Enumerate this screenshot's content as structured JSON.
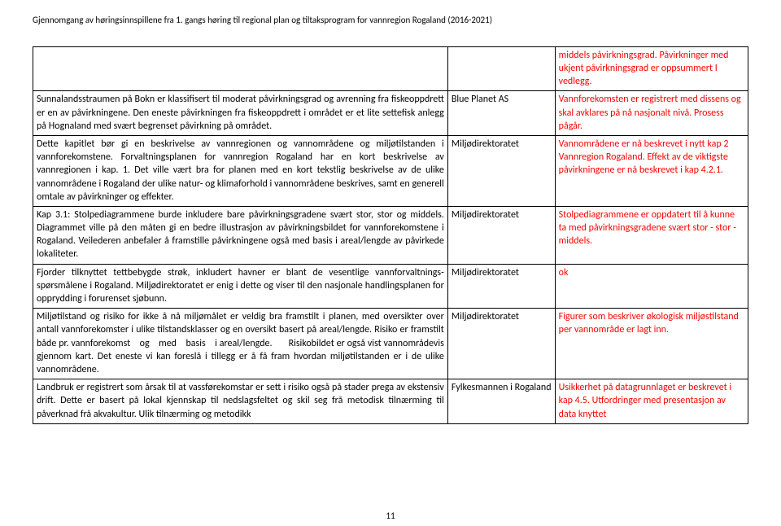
{
  "header": "Gjennomgang av høringsinnspillene fra 1. gangs høring til regional plan og tiltaksprogram for vannregion Rogaland (2016-2021)",
  "rows": [
    {
      "c1": "",
      "c2": "",
      "c3_class": "red",
      "c3": "middels påvirkningsgrad. Påvirkninger med ukjent påvirkningsgrad er oppsummert I vedlegg."
    },
    {
      "c1": "Sunnalandsstraumen på Bokn er klassifisert til moderat påvirkningsgrad og avrenning fra fiskeoppdrett er en av påvirkningene. Den eneste påvirkningen fra fiskeoppdrett i området er et lite settefisk anlegg på Hognaland med svært begrenset påvirkning på området.",
      "c2": "Blue Planet AS",
      "c3_class": "red",
      "c3": "Vannforekomsten er registrert med dissens og skal avklares på nå nasjonalt nivå. Prosess pågår."
    },
    {
      "c1": "Dette kapitlet bør gi en beskrivelse av vannregionen og vannområdene og miljøtilstanden i vannforekomstene. Forvaltningsplanen for vannregion Rogaland har en kort beskrivelse av vannregionen i kap. 1. Det ville vært bra for planen med en kort tekstlig beskrivelse av de ulike vannområdene i Rogaland der ulike natur- og klimaforhold i vannområdene beskrives, samt en generell omtale av påvirkninger og effekter.",
      "c2": "Miljødirektoratet",
      "c3_class": "red",
      "c3": "Vannområdene er nå beskrevet i nytt kap 2 Vannregion Rogaland. Effekt av de viktigste påvirkningene er nå beskrevet i kap 4.2.1."
    },
    {
      "c1": "Kap 3.1: Stolpediagrammene burde inkludere bare påvirkningsgradene svært stor, stor og middels. Diagrammet ville på den måten gi en bedre illustrasjon av påvirkningsbildet for vannforekomstene i Rogaland. Veilederen anbefaler å framstille påvirkningene også med basis i areal/lengde av påvirkede lokaliteter.",
      "c2": "Miljødirektoratet",
      "c3_class": "red",
      "c3": "Stolpediagrammene er oppdatert til å kunne ta med påvirkningsgradene svært stor - stor - middels."
    },
    {
      "c1": "Fjorder tilknyttet tettbebygde strøk, inkludert havner er blant de vesentlige vannforvaltnings- spørsmålene i Rogaland. Miljødirektoratet er enig i dette og viser til den nasjonale handlingsplanen for opprydding i forurenset sjøbunn.",
      "c2": "Miljødirektoratet",
      "c3_class": "red",
      "c3": "ok"
    },
    {
      "c1_html": "Miljøtilstand og  risiko for ikke å nå miljømålet  er veldig bra framstilt i planen, med oversikter over antall vannforekomster i ulike tilstandsklasser og en oversikt basert på areal/lengde. Risiko er framstilt både pr. vannforekomst <span class='sp'>   og   </span> med <span class='sp'>   basis   </span> i areal/lengde. <span class='sp'>      </span>Risikobildet er også vist vannområdevis gjennom kart. Det eneste vi kan foreslå i tillegg er å få fram hvordan miljøtilstanden er i de ulike vannområdene.",
      "c2": "Miljødirektoratet",
      "c3_class": "red",
      "c3": "Figurer som beskriver økologisk miljøstilstand per vannområde er lagt inn."
    },
    {
      "c1": "Landbruk er registrert som årsak til at vassførekomstar er sett i risiko også på stader prega av ekstensiv drift. Dette er basert på lokal kjennskap til nedslagsfeltet og skil seg frå metodisk tilnærming til påverknad frå akvakultur. Ulik tilnærming og metodikk",
      "c2": "Fylkesmannen i Rogaland",
      "c3_class": "red",
      "c3": "Usikkerhet på datagrunnlaget er beskrevet i kap 4.5. Utfordringer med presentasjon av data knyttet"
    }
  ],
  "page_number": "11"
}
